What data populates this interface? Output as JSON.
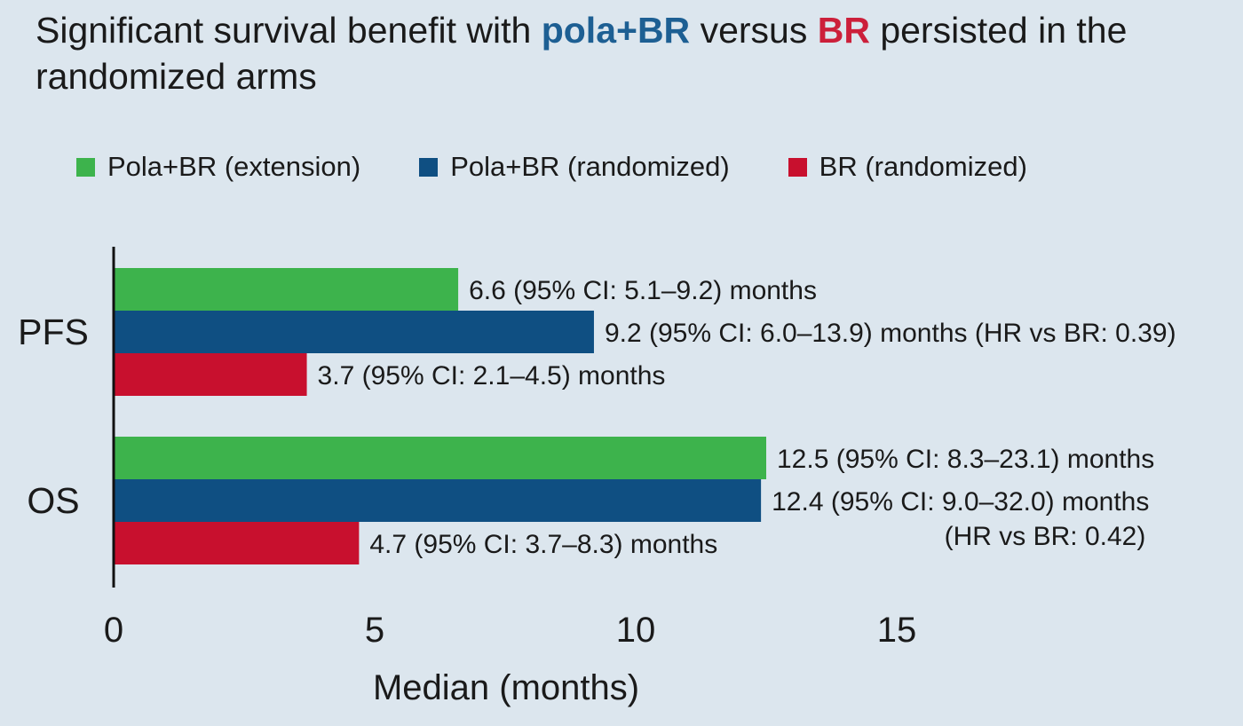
{
  "title": {
    "part1": "Significant survival benefit with ",
    "highlight1": "pola+BR",
    "part2": " versus ",
    "highlight2": "BR",
    "part3": " persisted in the randomized arms"
  },
  "colors": {
    "title_blue": "#1d5f93",
    "title_red": "#cc1f3a",
    "extension": "#3db34c",
    "randomized": "#0f4f82",
    "br": "#c8102e",
    "axis": "#111111",
    "background": "#dce6ee"
  },
  "chart_data": {
    "type": "bar",
    "orientation": "horizontal",
    "categories": [
      "PFS",
      "OS"
    ],
    "series": [
      {
        "name": "Pola+BR (extension)",
        "color": "#3db34c",
        "values": [
          6.6,
          12.5
        ],
        "labels": [
          "6.6 (95% CI: 5.1–9.2) months",
          "12.5 (95% CI: 8.3–23.1) months"
        ]
      },
      {
        "name": "Pola+BR (randomized)",
        "color": "#0f4f82",
        "values": [
          9.2,
          12.4
        ],
        "labels": [
          "9.2 (95% CI: 6.0–13.9) months (HR vs BR: 0.39)",
          "12.4 (95% CI: 9.0–32.0) months"
        ],
        "extra_label_os": "(HR vs BR: 0.42)"
      },
      {
        "name": "BR (randomized)",
        "color": "#c8102e",
        "values": [
          3.7,
          4.7
        ],
        "labels": [
          "3.7 (95% CI: 2.1–4.5) months",
          "4.7 (95% CI: 3.7–8.3) months"
        ]
      }
    ],
    "xlabel": "Median (months)",
    "ylabel": "",
    "xlim": [
      0,
      15
    ],
    "xticks": [
      0,
      5,
      10,
      15
    ],
    "xtick_labels": [
      "0",
      "5",
      "10",
      "15"
    ],
    "grid": false,
    "legend_position": "top"
  }
}
